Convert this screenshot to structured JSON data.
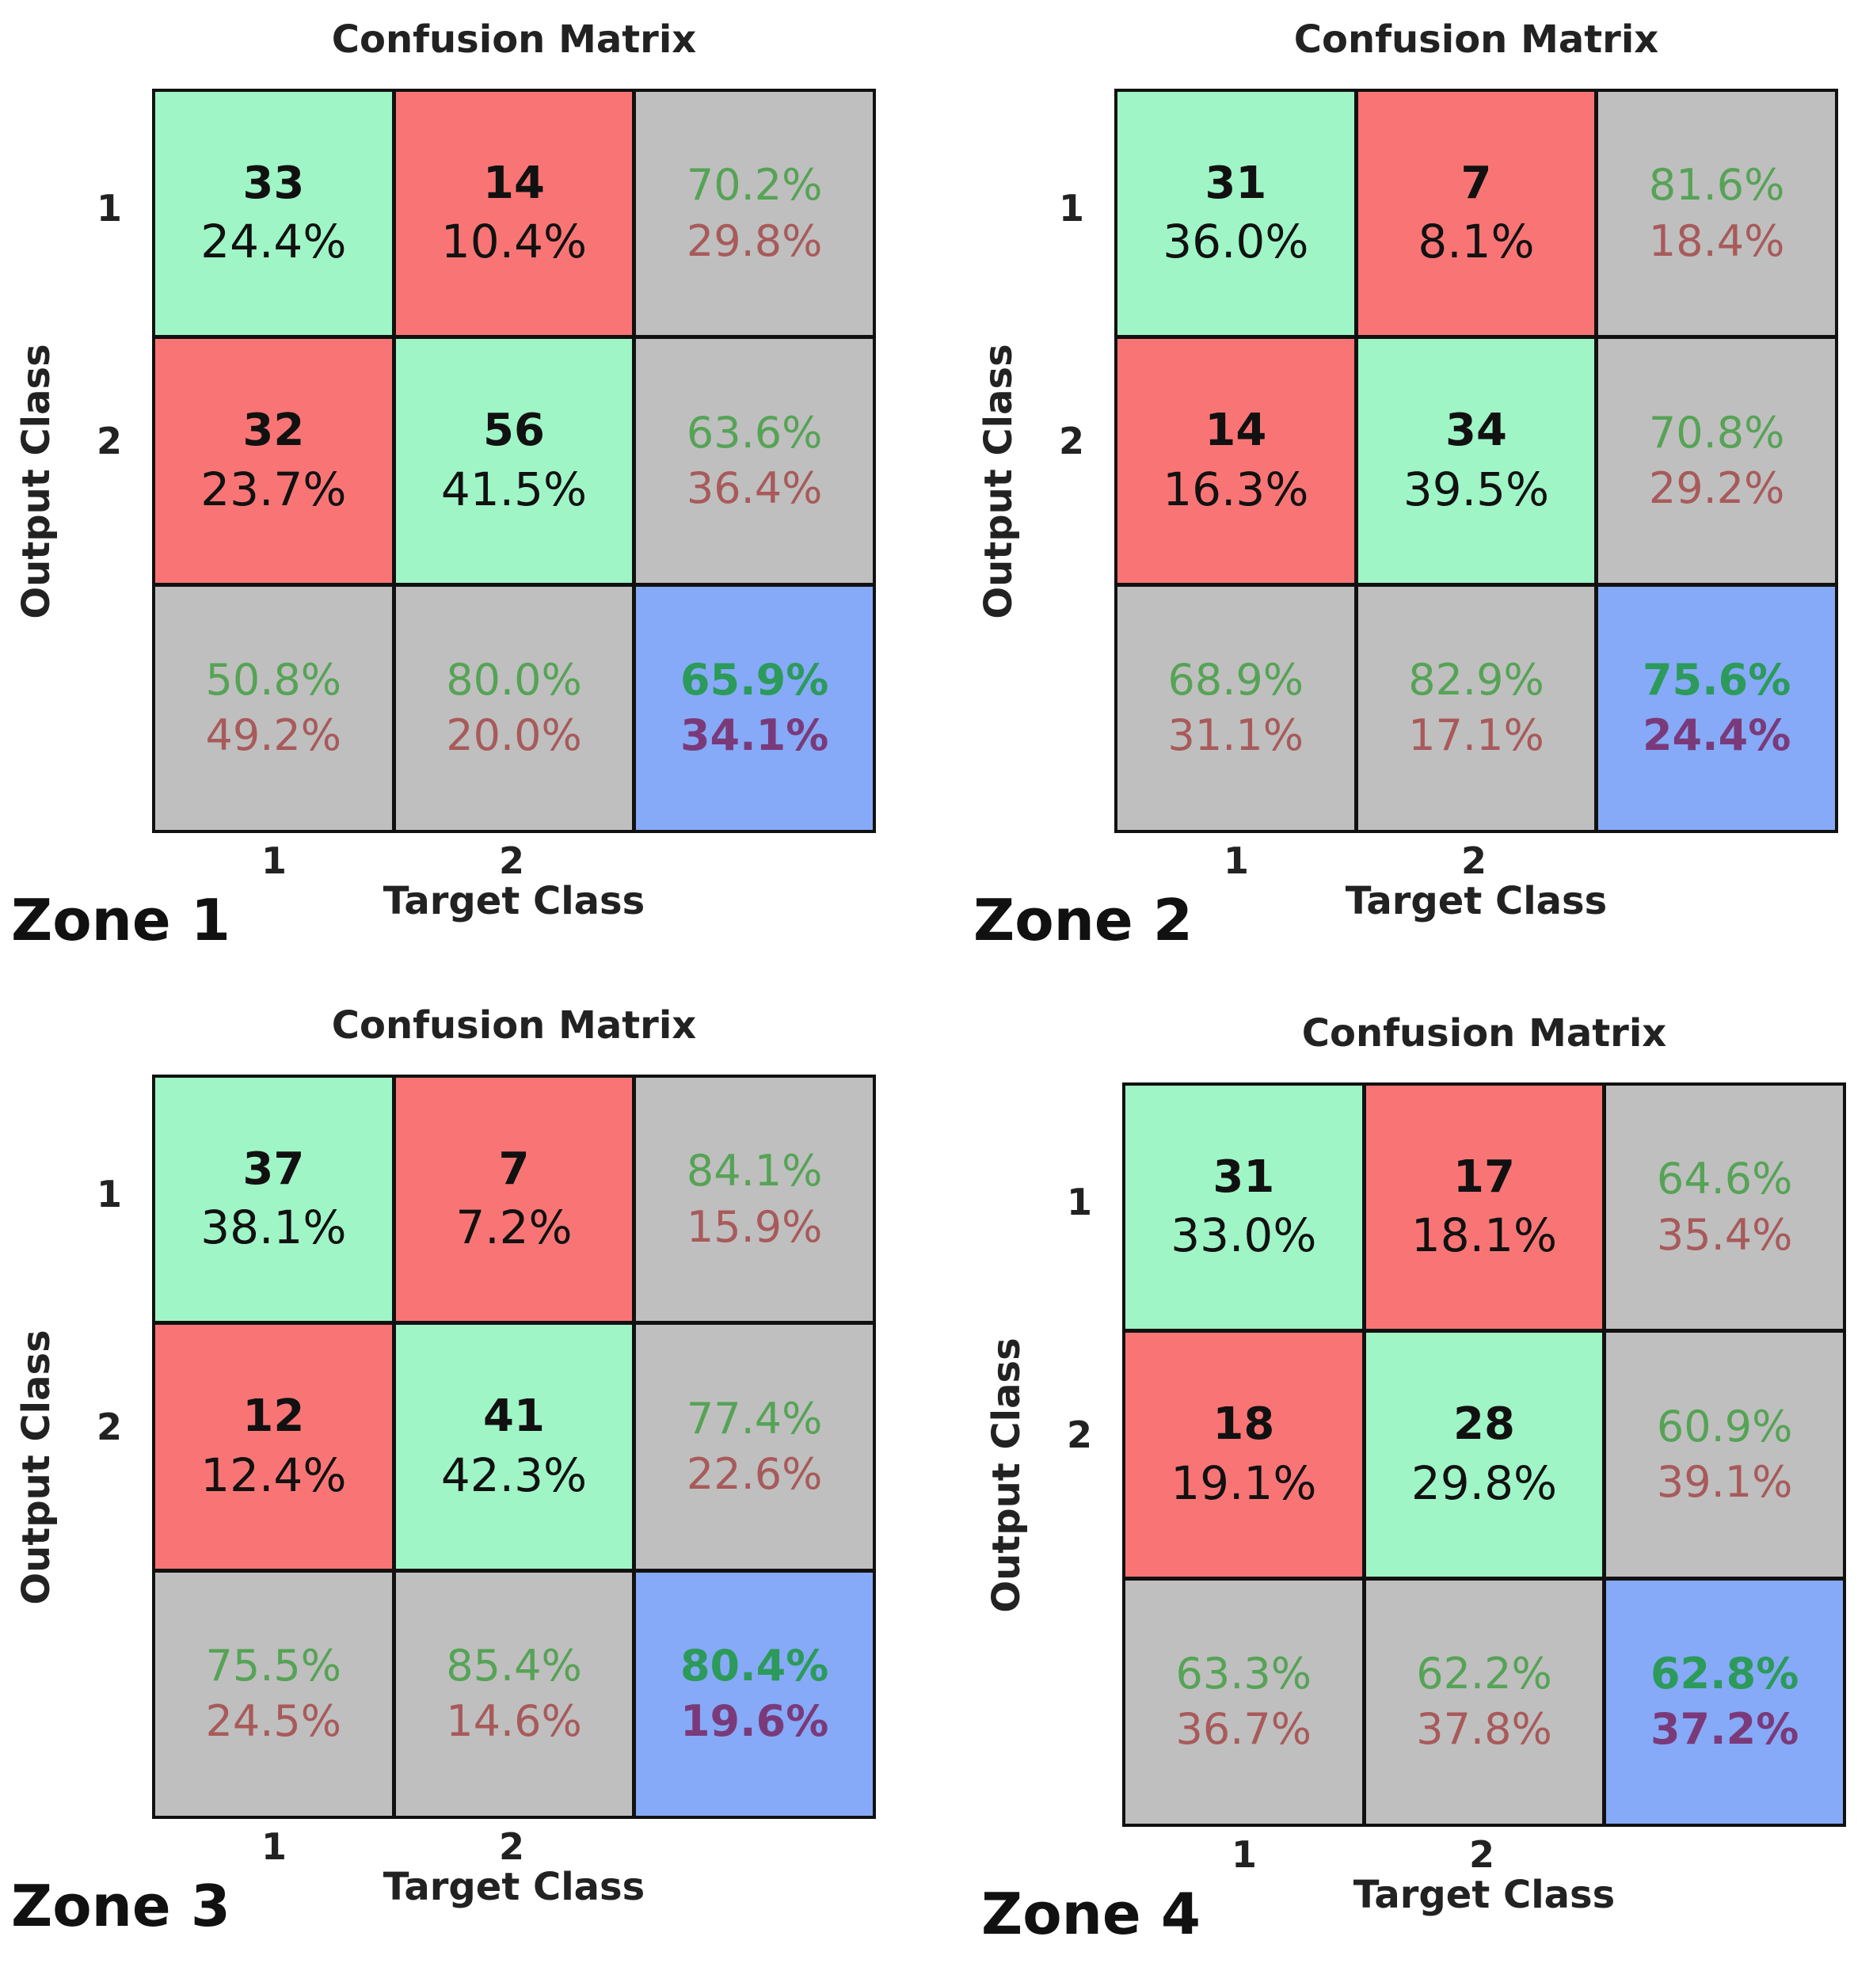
{
  "chart_data": [
    {
      "type": "table",
      "zone": "Zone 1",
      "title": "Confusion Matrix",
      "xlabel": "Target Class",
      "ylabel": "Output Class",
      "x_ticks": [
        "1",
        "2"
      ],
      "y_ticks": [
        "1",
        "2"
      ],
      "cells": [
        {
          "count": "33",
          "pct": "24.4%"
        },
        {
          "count": "14",
          "pct": "10.4%"
        },
        {
          "count": "32",
          "pct": "23.7%"
        },
        {
          "count": "56",
          "pct": "41.5%"
        }
      ],
      "row_summary": [
        {
          "good": "70.2%",
          "bad": "29.8%"
        },
        {
          "good": "63.6%",
          "bad": "36.4%"
        }
      ],
      "col_summary": [
        {
          "good": "50.8%",
          "bad": "49.2%"
        },
        {
          "good": "80.0%",
          "bad": "20.0%"
        }
      ],
      "overall": {
        "good": "65.9%",
        "bad": "34.1%"
      }
    },
    {
      "type": "table",
      "zone": "Zone 2",
      "title": "Confusion Matrix",
      "xlabel": "Target Class",
      "ylabel": "Output Class",
      "x_ticks": [
        "1",
        "2"
      ],
      "y_ticks": [
        "1",
        "2"
      ],
      "cells": [
        {
          "count": "31",
          "pct": "36.0%"
        },
        {
          "count": "7",
          "pct": "8.1%"
        },
        {
          "count": "14",
          "pct": "16.3%"
        },
        {
          "count": "34",
          "pct": "39.5%"
        }
      ],
      "row_summary": [
        {
          "good": "81.6%",
          "bad": "18.4%"
        },
        {
          "good": "70.8%",
          "bad": "29.2%"
        }
      ],
      "col_summary": [
        {
          "good": "68.9%",
          "bad": "31.1%"
        },
        {
          "good": "82.9%",
          "bad": "17.1%"
        }
      ],
      "overall": {
        "good": "75.6%",
        "bad": "24.4%"
      }
    },
    {
      "type": "table",
      "zone": "Zone 3",
      "title": "Confusion Matrix",
      "xlabel": "Target Class",
      "ylabel": "Output Class",
      "x_ticks": [
        "1",
        "2"
      ],
      "y_ticks": [
        "1",
        "2"
      ],
      "cells": [
        {
          "count": "37",
          "pct": "38.1%"
        },
        {
          "count": "7",
          "pct": "7.2%"
        },
        {
          "count": "12",
          "pct": "12.4%"
        },
        {
          "count": "41",
          "pct": "42.3%"
        }
      ],
      "row_summary": [
        {
          "good": "84.1%",
          "bad": "15.9%"
        },
        {
          "good": "77.4%",
          "bad": "22.6%"
        }
      ],
      "col_summary": [
        {
          "good": "75.5%",
          "bad": "24.5%"
        },
        {
          "good": "85.4%",
          "bad": "14.6%"
        }
      ],
      "overall": {
        "good": "80.4%",
        "bad": "19.6%"
      }
    },
    {
      "type": "table",
      "zone": "Zone 4",
      "title": "Confusion Matrix",
      "xlabel": "Target Class",
      "ylabel": "Output Class",
      "x_ticks": [
        "1",
        "2"
      ],
      "y_ticks": [
        "1",
        "2"
      ],
      "cells": [
        {
          "count": "31",
          "pct": "33.0%"
        },
        {
          "count": "17",
          "pct": "18.1%"
        },
        {
          "count": "18",
          "pct": "19.1%"
        },
        {
          "count": "28",
          "pct": "29.8%"
        }
      ],
      "row_summary": [
        {
          "good": "64.6%",
          "bad": "35.4%"
        },
        {
          "good": "60.9%",
          "bad": "39.1%"
        }
      ],
      "col_summary": [
        {
          "good": "63.3%",
          "bad": "36.7%"
        },
        {
          "good": "62.2%",
          "bad": "37.8%"
        }
      ],
      "overall": {
        "good": "62.8%",
        "bad": "37.2%"
      }
    }
  ]
}
